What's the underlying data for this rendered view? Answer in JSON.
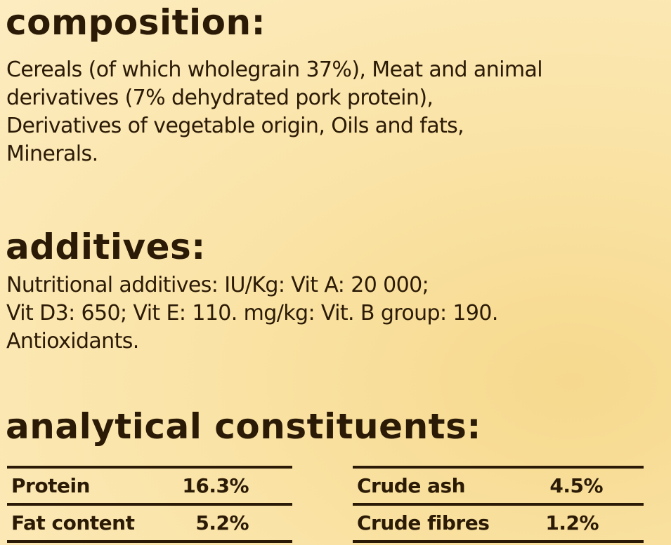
{
  "composition": {
    "heading": "composition:",
    "lines": [
      "Cereals (of which wholegrain 37%), Meat and animal",
      "derivatives (7% dehydrated pork protein),",
      "Derivatives of vegetable origin, Oils and fats,",
      "Minerals."
    ]
  },
  "additives": {
    "heading": "additives:",
    "lines": [
      "Nutritional additives: IU/Kg: Vit A: 20 000;",
      "Vit D3: 650; Vit E: 110. mg/kg: Vit. B group: 190.",
      "Antioxidants."
    ]
  },
  "analytical": {
    "heading": "analytical constituents:",
    "left": [
      {
        "label": "Protein",
        "value": "16.3%"
      },
      {
        "label": "Fat content",
        "value": "5.2%"
      }
    ],
    "right": [
      {
        "label": "Crude ash",
        "value": "4.5%"
      },
      {
        "label": "Crude fibres",
        "value": "1.2%"
      }
    ]
  },
  "colors": {
    "text": "#2b1a06",
    "background": "#fae3a6"
  }
}
